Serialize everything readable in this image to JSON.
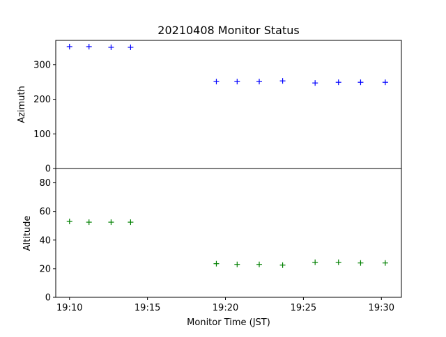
{
  "chart_data": {
    "type": "scatter",
    "title": "20210408 Monitor Status",
    "xlabel": "Monitor Time (JST)",
    "x_ticks": [
      "19:10",
      "19:15",
      "19:20",
      "19:25",
      "19:30"
    ],
    "x_range": [
      "19:09:07",
      "19:31:17"
    ],
    "panels": [
      {
        "ylabel": "Azimuth",
        "ylim": [
          0,
          370
        ],
        "y_ticks": [
          0,
          100,
          200,
          300
        ],
        "marker": "+",
        "color": "#0000ff",
        "points": [
          {
            "x": "19:10:00",
            "y": 352
          },
          {
            "x": "19:11:15",
            "y": 352
          },
          {
            "x": "19:12:40",
            "y": 350
          },
          {
            "x": "19:13:55",
            "y": 350
          },
          {
            "x": "19:19:25",
            "y": 251
          },
          {
            "x": "19:20:45",
            "y": 251
          },
          {
            "x": "19:22:10",
            "y": 251
          },
          {
            "x": "19:23:40",
            "y": 253
          },
          {
            "x": "19:25:45",
            "y": 247
          },
          {
            "x": "19:27:15",
            "y": 249
          },
          {
            "x": "19:28:40",
            "y": 249
          },
          {
            "x": "19:30:15",
            "y": 249
          }
        ]
      },
      {
        "ylabel": "Altitude",
        "ylim": [
          0,
          90
        ],
        "y_ticks": [
          0,
          20,
          40,
          60,
          80
        ],
        "marker": "+",
        "color": "#008000",
        "points": [
          {
            "x": "19:10:00",
            "y": 53
          },
          {
            "x": "19:11:15",
            "y": 52.5
          },
          {
            "x": "19:12:40",
            "y": 52.5
          },
          {
            "x": "19:13:55",
            "y": 52.5
          },
          {
            "x": "19:19:25",
            "y": 23.5
          },
          {
            "x": "19:20:45",
            "y": 23
          },
          {
            "x": "19:22:10",
            "y": 23
          },
          {
            "x": "19:23:40",
            "y": 22.5
          },
          {
            "x": "19:25:45",
            "y": 24.5
          },
          {
            "x": "19:27:15",
            "y": 24.5
          },
          {
            "x": "19:28:40",
            "y": 24
          },
          {
            "x": "19:30:15",
            "y": 24
          }
        ]
      }
    ]
  }
}
